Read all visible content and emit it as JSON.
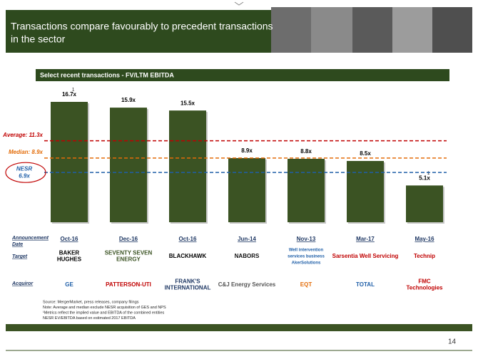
{
  "header": {
    "title": [
      "Transactions compare favourably to precedent transactions",
      "in the sector"
    ],
    "page_number": "14"
  },
  "chart_data": {
    "type": "bar",
    "title": "Select recent transactions - FV/LTM EBITDA",
    "categories": [
      "Oct-16",
      "Dec-16",
      "Oct-16",
      "Jun-14",
      "Nov-13",
      "Mar-17",
      "May-16"
    ],
    "values": [
      16.7,
      15.9,
      15.5,
      8.9,
      8.8,
      8.5,
      5.1
    ],
    "value_labels": [
      "16.7x",
      "15.9x",
      "15.5x",
      "8.9x",
      "8.8x",
      "8.5x",
      "5.1x"
    ],
    "value_notes": [
      "1",
      null,
      null,
      null,
      null,
      null,
      "1"
    ],
    "color": "#3b5323",
    "reference_lines": [
      {
        "label": [
          "Average: 11.3x"
        ],
        "value": 11.3,
        "color": "#c00000"
      },
      {
        "label": [
          "Median: 8.9x"
        ],
        "value": 8.9,
        "color": "#e36c09"
      },
      {
        "label": [
          "NESR",
          "6.9x"
        ],
        "value": 6.9,
        "color": "#1f5fa8"
      }
    ]
  },
  "deal_table": {
    "row_labels": [
      [
        "Announcement",
        "Date"
      ],
      [
        "Target"
      ],
      [
        "Acquiror"
      ]
    ],
    "targets": [
      [
        "BAKER",
        "HUGHES"
      ],
      [
        "SEVENTY SEVEN",
        "ENERGY"
      ],
      [
        "BLACKHAWK"
      ],
      [
        "NABORS"
      ],
      [
        "Well intervention",
        "services business",
        "AkerSolutions"
      ],
      [
        "Sarsentia Well Servicing"
      ],
      [
        "Technip"
      ]
    ],
    "acquirors": [
      [
        "GE"
      ],
      [
        "PATTERSON-UTI"
      ],
      [
        "FRANK'S",
        "INTERNATIONAL"
      ],
      [
        "C&J Energy Services"
      ],
      [
        "EQT"
      ],
      [
        "TOTAL"
      ],
      [
        "FMC",
        "Technologies"
      ]
    ]
  },
  "footnotes": [
    "Source: MergerMarket, press releases, company filings",
    "Note: Average and median exclude NESR acquisition of GES and NPS",
    "¹Metrics reflect the implied value and EBITDA of the combined entities",
    "NESR EV/EBITDA based on estimated 2017 EBITDA"
  ]
}
